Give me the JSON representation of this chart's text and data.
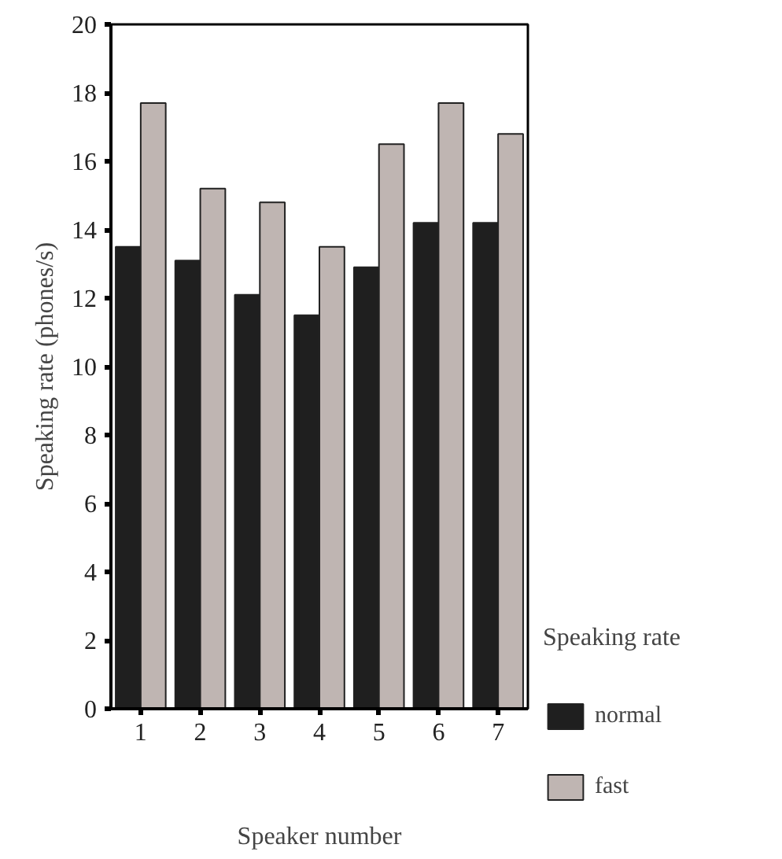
{
  "chart_data": {
    "type": "bar",
    "xlabel": "Speaker number",
    "ylabel": "Speaking rate (phones/s)",
    "legend_title": "Speaking rate",
    "categories": [
      "1",
      "2",
      "3",
      "4",
      "5",
      "6",
      "7"
    ],
    "series": [
      {
        "name": "normal",
        "color": "#1f1f1f",
        "values": [
          13.5,
          13.1,
          12.1,
          11.5,
          12.9,
          14.2,
          14.2
        ]
      },
      {
        "name": "fast",
        "color": "#bfb5b2",
        "values": [
          17.7,
          15.2,
          14.8,
          13.5,
          16.5,
          17.7,
          16.8
        ]
      }
    ],
    "ylim": [
      0,
      20
    ],
    "yticks": [
      0,
      2,
      4,
      6,
      8,
      10,
      12,
      14,
      16,
      18,
      20
    ],
    "grid": false,
    "legend": "right"
  }
}
